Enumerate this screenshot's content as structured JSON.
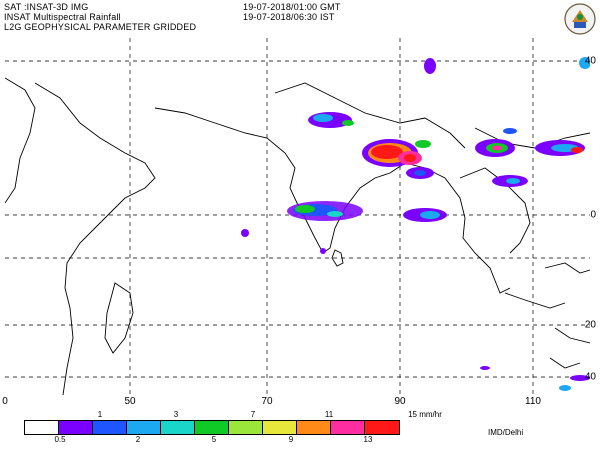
{
  "header": {
    "line1": "SAT :INSAT-3D IMG",
    "line2": "INSAT Multispectral Rainfall",
    "line3": "L2G GEOPHYSICAL PARAMETER GRIDDED",
    "time_gmt": "19-07-2018/01:00 GMT",
    "time_ist": "19-07-2018/06:30 IST"
  },
  "logo": {
    "icon": "imd-emblem-icon"
  },
  "map": {
    "lon_labels": [
      "0",
      "50",
      "70",
      "90",
      "110"
    ],
    "lat_labels": [
      "40",
      "0",
      "20",
      "40"
    ],
    "land_color": "#ffffff",
    "coast_color": "#000000",
    "grid_color": "#000000"
  },
  "legend": {
    "colors": [
      "#ffffff",
      "#7a00ff",
      "#1f55ff",
      "#1da8f2",
      "#19d6c8",
      "#10c826",
      "#9ae63b",
      "#e6e63b",
      "#ff8a18",
      "#ff2ea0",
      "#ff1818"
    ],
    "upper_ticks": [
      "1",
      "3",
      "7",
      "11",
      "15 mm/hr"
    ],
    "lower_ticks": [
      "0.5",
      "2",
      "5",
      "9",
      "13"
    ]
  },
  "credit": "IMD/Delhi"
}
